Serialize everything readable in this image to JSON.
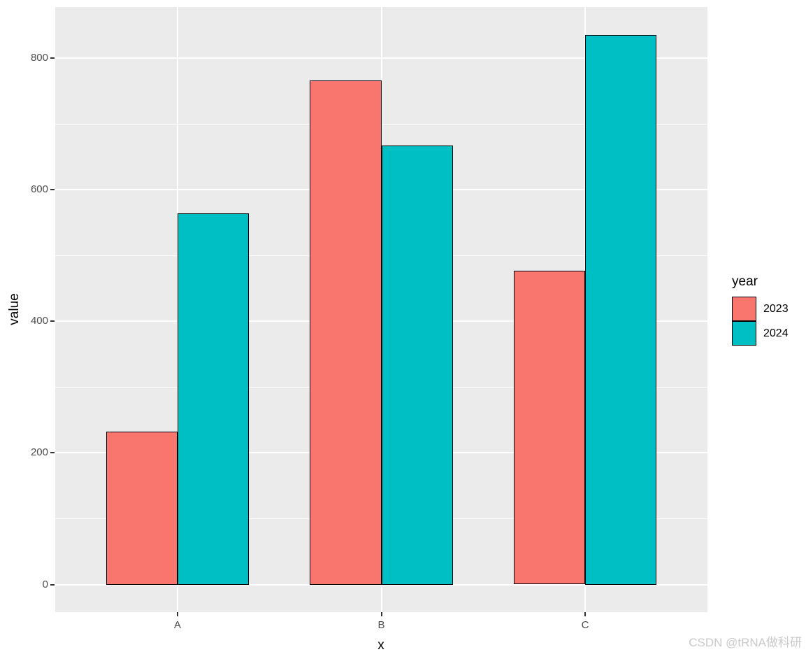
{
  "watermark": "CSDN @tRNA做科研",
  "chart_data": {
    "type": "bar",
    "title": "",
    "xlabel": "x",
    "ylabel": "value",
    "categories": [
      "A",
      "B",
      "C"
    ],
    "series": [
      {
        "name": "2023",
        "color": "#F8766D",
        "values": [
          232,
          766,
          477
        ]
      },
      {
        "name": "2024",
        "color": "#00BFC4",
        "values": [
          564,
          667,
          835
        ]
      }
    ],
    "legend": {
      "title": "year",
      "position": "right"
    },
    "y_ticks": [
      0,
      200,
      400,
      600,
      800
    ],
    "y_minor_ticks": [
      100,
      300,
      500,
      700
    ],
    "ylim": [
      -42,
      878
    ],
    "x_expand": [
      0.4,
      3.6
    ],
    "bar_width_units": 0.35,
    "grid": "on",
    "panel_background": "#EBEBEB",
    "gridline_color": "#FFFFFF",
    "bar_border_color": "#000000",
    "axis_text_color": "#4D4D4D",
    "tick_mark_color": "#333333"
  }
}
